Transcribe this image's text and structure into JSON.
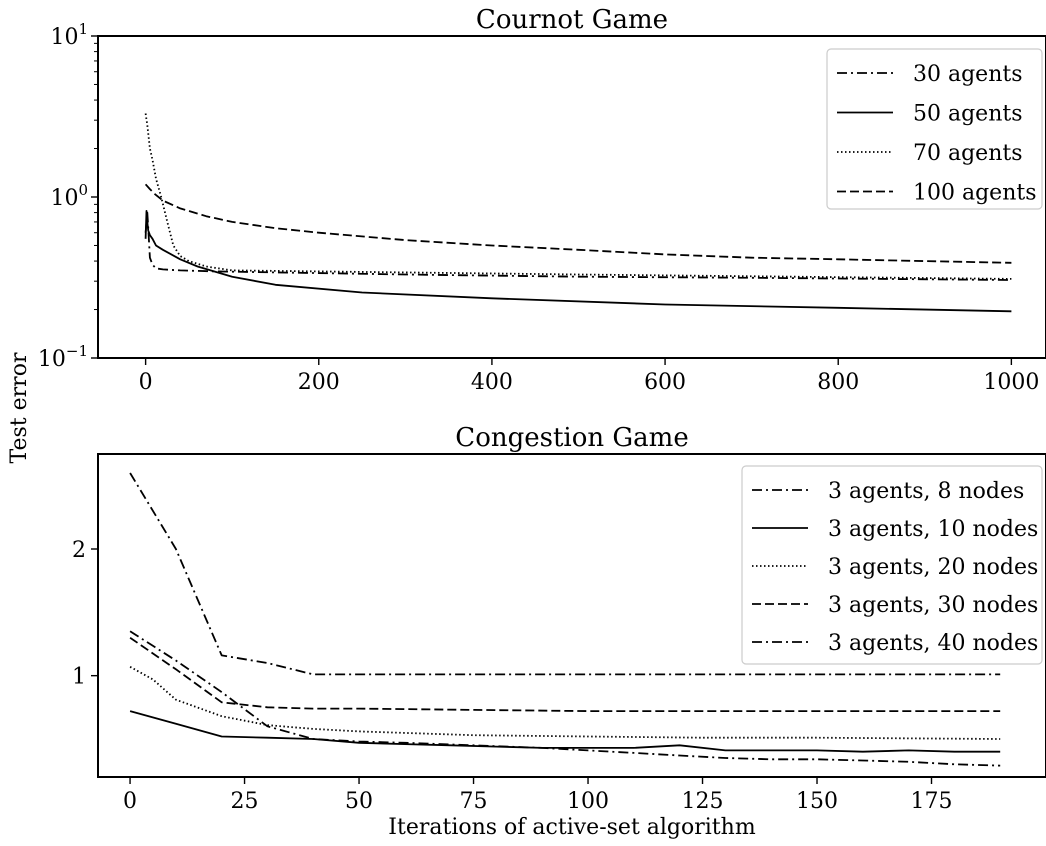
{
  "figure": {
    "ylabel": "Test error",
    "xlabel": "Iterations of active-set algorithm"
  },
  "chart_data": [
    {
      "type": "line",
      "title": "Cournot Game",
      "xlabel": "",
      "ylabel": "Test error",
      "yscale": "log",
      "xlim": [
        -55,
        1040
      ],
      "ylim": [
        0.1,
        10
      ],
      "xticks": [
        0,
        200,
        400,
        600,
        800,
        1000
      ],
      "xtick_labels": [
        "0",
        "200",
        "400",
        "600",
        "800",
        "1000"
      ],
      "yticks": [
        10,
        1,
        0.1
      ],
      "ytick_labels": [
        {
          "base": "10",
          "exp": "1"
        },
        {
          "base": "10",
          "exp": "0"
        },
        {
          "base": "10",
          "exp": "−1"
        }
      ],
      "grid": false,
      "legend_position": "top-right",
      "series": [
        {
          "name": "30 agents",
          "style": "dashdot",
          "x": [
            0,
            2,
            3,
            5,
            8,
            12,
            20,
            40,
            80,
            150,
            300,
            500,
            700,
            1000
          ],
          "y": [
            0.6,
            0.8,
            0.65,
            0.42,
            0.38,
            0.36,
            0.355,
            0.35,
            0.345,
            0.34,
            0.33,
            0.32,
            0.315,
            0.305
          ]
        },
        {
          "name": "50 agents",
          "style": "solid",
          "x": [
            0,
            1,
            2,
            3,
            5,
            8,
            12,
            20,
            40,
            60,
            100,
            150,
            250,
            400,
            600,
            800,
            1000
          ],
          "y": [
            0.55,
            0.82,
            0.7,
            0.62,
            0.58,
            0.55,
            0.5,
            0.47,
            0.41,
            0.37,
            0.32,
            0.285,
            0.255,
            0.235,
            0.215,
            0.205,
            0.195
          ]
        },
        {
          "name": "70 agents",
          "style": "dotted",
          "x": [
            0,
            2,
            5,
            8,
            12,
            18,
            25,
            32,
            40,
            50,
            70,
            100,
            200,
            500,
            1000
          ],
          "y": [
            3.3,
            2.8,
            2.0,
            1.7,
            1.3,
            1.0,
            0.7,
            0.5,
            0.43,
            0.4,
            0.37,
            0.35,
            0.345,
            0.33,
            0.31
          ]
        },
        {
          "name": "100 agents",
          "style": "dashed",
          "x": [
            0,
            5,
            10,
            20,
            40,
            70,
            100,
            150,
            200,
            300,
            400,
            500,
            600,
            700,
            800,
            900,
            1000
          ],
          "y": [
            1.2,
            1.12,
            1.05,
            0.95,
            0.85,
            0.76,
            0.7,
            0.64,
            0.6,
            0.54,
            0.5,
            0.47,
            0.44,
            0.42,
            0.41,
            0.4,
            0.39
          ]
        }
      ]
    },
    {
      "type": "line",
      "title": "Congestion Game",
      "xlabel": "Iterations of active-set algorithm",
      "ylabel": "Test error",
      "yscale": "linear",
      "xlim": [
        -7,
        200
      ],
      "ylim": [
        0.2,
        2.75
      ],
      "xticks": [
        0,
        25,
        50,
        75,
        100,
        125,
        150,
        175
      ],
      "xtick_labels": [
        "0",
        "25",
        "50",
        "75",
        "100",
        "125",
        "150",
        "175"
      ],
      "yticks": [
        1,
        2
      ],
      "ytick_labels": [
        "1",
        "2"
      ],
      "grid": false,
      "legend_position": "top-right",
      "series": [
        {
          "name": "3 agents, 8 nodes",
          "style": "dashdot",
          "x": [
            0,
            10,
            20,
            30,
            40,
            60,
            80,
            100,
            120,
            140,
            160,
            180,
            190
          ],
          "y": [
            2.6,
            2.0,
            1.16,
            1.1,
            1.01,
            1.01,
            1.01,
            1.01,
            1.01,
            1.01,
            1.01,
            1.01,
            1.01
          ]
        },
        {
          "name": "3 agents, 10 nodes",
          "style": "solid",
          "x": [
            0,
            10,
            20,
            30,
            40,
            50,
            60,
            70,
            80,
            90,
            100,
            110,
            120,
            130,
            140,
            150,
            160,
            170,
            180,
            190
          ],
          "y": [
            0.72,
            0.62,
            0.52,
            0.51,
            0.5,
            0.47,
            0.46,
            0.45,
            0.44,
            0.43,
            0.43,
            0.43,
            0.45,
            0.41,
            0.41,
            0.41,
            0.4,
            0.41,
            0.4,
            0.4
          ]
        },
        {
          "name": "3 agents, 20 nodes",
          "style": "dotted",
          "x": [
            0,
            5,
            10,
            20,
            30,
            40,
            50,
            75,
            100,
            125,
            150,
            190
          ],
          "y": [
            1.07,
            0.97,
            0.81,
            0.68,
            0.61,
            0.58,
            0.56,
            0.53,
            0.52,
            0.51,
            0.51,
            0.5
          ]
        },
        {
          "name": "3 agents, 30 nodes",
          "style": "dashed",
          "x": [
            0,
            10,
            20,
            30,
            40,
            50,
            75,
            100,
            125,
            150,
            190
          ],
          "y": [
            1.3,
            1.05,
            0.79,
            0.75,
            0.74,
            0.74,
            0.73,
            0.72,
            0.72,
            0.72,
            0.72
          ]
        },
        {
          "name": "3 agents, 40 nodes",
          "style": "dashdot",
          "x": [
            0,
            10,
            20,
            30,
            40,
            50,
            60,
            75,
            90,
            100,
            110,
            120,
            130,
            140,
            150,
            160,
            170,
            180,
            190
          ],
          "y": [
            1.35,
            1.12,
            0.87,
            0.6,
            0.5,
            0.48,
            0.47,
            0.45,
            0.43,
            0.41,
            0.39,
            0.37,
            0.35,
            0.34,
            0.34,
            0.33,
            0.32,
            0.3,
            0.29
          ]
        }
      ]
    }
  ]
}
